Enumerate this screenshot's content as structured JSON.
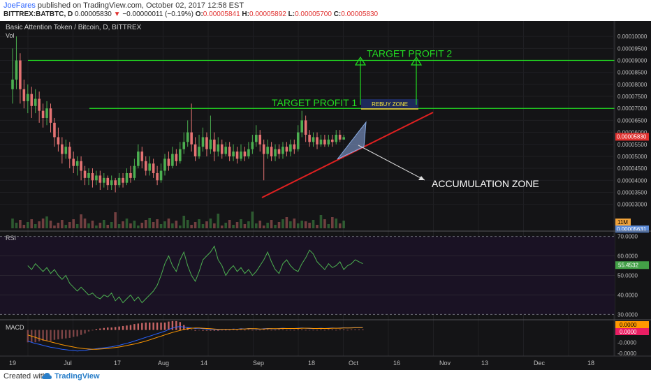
{
  "header": {
    "author": "JoeFares",
    "published": " published on TradingView.com, October 02, 2017 12:58 EST",
    "symbol": "BITTREX:BATBTC, D",
    "last": "0.00005830",
    "change": "−0.00000011 (−0.19%)",
    "o_label": "O:",
    "o": "0.00005841",
    "h_label": "H:",
    "h": "0.00005892",
    "l_label": "L:",
    "l": "0.00005700",
    "c_label": "C:",
    "c": "0.00005830"
  },
  "footer": {
    "created": "Created with",
    "brand": "TradingView"
  },
  "colors": {
    "background": "#141416",
    "up": "#4caf50",
    "down": "#e57373",
    "annotation": "#22dd22",
    "trend": "#e02020",
    "rsi_line": "#4caf50",
    "rsi_bg": "#1a1224",
    "macd_line": "#2962ff",
    "signal_line": "#ff9800"
  },
  "chart_data": {
    "type": "candlestick",
    "title": "Basic Attention Token / Bitcoin, D, BITTREX",
    "volume_label": "Vol",
    "price_axis": [
      "0.00010000",
      "0.00009500",
      "0.00009000",
      "0.00008500",
      "0.00008000",
      "0.00007500",
      "0.00007000",
      "0.00006500",
      "0.00006000",
      "0.00005500",
      "0.00005000",
      "0.00004500",
      "0.00004000",
      "0.00003500",
      "0.00003000"
    ],
    "price_range": [
      2e-05,
      0.000105
    ],
    "last_price_label": "0.00005830",
    "volume_badge": "11M",
    "volume_price_label": "0.00005631",
    "x_ticks": [
      "19",
      "Jul",
      "17",
      "Aug",
      "14",
      "Sep",
      "18",
      "Oct",
      "16",
      "Nov",
      "13",
      "Dec",
      "18"
    ],
    "candles": [
      {
        "o": 7.8e-05,
        "c": 8.2e-05,
        "h": 9.5e-05,
        "l": 7.2e-05
      },
      {
        "o": 8.2e-05,
        "c": 9e-05,
        "h": 0.0001,
        "l": 7.8e-05
      },
      {
        "o": 9e-05,
        "c": 7.8e-05,
        "h": 9.3e-05,
        "l": 7.2e-05
      },
      {
        "o": 7.8e-05,
        "c": 7.3e-05,
        "h": 8.2e-05,
        "l": 7e-05
      },
      {
        "o": 7.3e-05,
        "c": 7.6e-05,
        "h": 8e-05,
        "l": 6.8e-05
      },
      {
        "o": 7.6e-05,
        "c": 7.1e-05,
        "h": 7.9e-05,
        "l": 6.6e-05
      },
      {
        "o": 7.1e-05,
        "c": 7.4e-05,
        "h": 7.8e-05,
        "l": 6.8e-05
      },
      {
        "o": 7.4e-05,
        "c": 6.9e-05,
        "h": 7.7e-05,
        "l": 6.4e-05
      },
      {
        "o": 6.9e-05,
        "c": 6.6e-05,
        "h": 7.2e-05,
        "l": 6.2e-05
      },
      {
        "o": 6.6e-05,
        "c": 7e-05,
        "h": 7.3e-05,
        "l": 6.3e-05
      },
      {
        "o": 7e-05,
        "c": 6.4e-05,
        "h": 7.2e-05,
        "l": 6e-05
      },
      {
        "o": 6.4e-05,
        "c": 5.8e-05,
        "h": 6.6e-05,
        "l": 5.4e-05
      },
      {
        "o": 5.8e-05,
        "c": 5.5e-05,
        "h": 6.2e-05,
        "l": 5.2e-05
      },
      {
        "o": 5.5e-05,
        "c": 5.1e-05,
        "h": 5.8e-05,
        "l": 4.7e-05
      },
      {
        "o": 5.1e-05,
        "c": 5.4e-05,
        "h": 5.7e-05,
        "l": 4.9e-05
      },
      {
        "o": 5.4e-05,
        "c": 4.9e-05,
        "h": 5.6e-05,
        "l": 4.5e-05
      },
      {
        "o": 4.9e-05,
        "c": 4.6e-05,
        "h": 5.2e-05,
        "l": 4.3e-05
      },
      {
        "o": 4.6e-05,
        "c": 4.8e-05,
        "h": 5e-05,
        "l": 4.2e-05
      },
      {
        "o": 4.8e-05,
        "c": 4.4e-05,
        "h": 5e-05,
        "l": 4e-05
      },
      {
        "o": 4.4e-05,
        "c": 4.1e-05,
        "h": 4.6e-05,
        "l": 3.8e-05
      },
      {
        "o": 4.1e-05,
        "c": 4.3e-05,
        "h": 4.5e-05,
        "l": 3.8e-05
      },
      {
        "o": 4.3e-05,
        "c": 4e-05,
        "h": 4.5e-05,
        "l": 3.7e-05
      },
      {
        "o": 4e-05,
        "c": 4.2e-05,
        "h": 4.4e-05,
        "l": 3.8e-05
      },
      {
        "o": 4.2e-05,
        "c": 3.9e-05,
        "h": 4.4e-05,
        "l": 3.6e-05
      },
      {
        "o": 3.9e-05,
        "c": 4.1e-05,
        "h": 4.3e-05,
        "l": 3.7e-05
      },
      {
        "o": 4.1e-05,
        "c": 3.8e-05,
        "h": 4.2e-05,
        "l": 3.6e-05
      },
      {
        "o": 3.8e-05,
        "c": 4e-05,
        "h": 4.2e-05,
        "l": 3.6e-05
      },
      {
        "o": 4e-05,
        "c": 3.8e-05,
        "h": 4.1e-05,
        "l": 3.5e-05
      },
      {
        "o": 3.8e-05,
        "c": 4.1e-05,
        "h": 4.3e-05,
        "l": 3.7e-05
      },
      {
        "o": 4.1e-05,
        "c": 3.9e-05,
        "h": 4.3e-05,
        "l": 3.7e-05
      },
      {
        "o": 3.9e-05,
        "c": 4.3e-05,
        "h": 4.5e-05,
        "l": 3.8e-05
      },
      {
        "o": 4.3e-05,
        "c": 4.1e-05,
        "h": 4.6e-05,
        "l": 3.9e-05
      },
      {
        "o": 4.1e-05,
        "c": 4.6e-05,
        "h": 4.9e-05,
        "l": 4e-05
      },
      {
        "o": 4.6e-05,
        "c": 5.2e-05,
        "h": 5.5e-05,
        "l": 4.5e-05
      },
      {
        "o": 5.2e-05,
        "c": 4.8e-05,
        "h": 5.4e-05,
        "l": 4.5e-05
      },
      {
        "o": 4.8e-05,
        "c": 4.4e-05,
        "h": 5e-05,
        "l": 4.2e-05
      },
      {
        "o": 4.4e-05,
        "c": 4.7e-05,
        "h": 5e-05,
        "l": 4.2e-05
      },
      {
        "o": 4.7e-05,
        "c": 4.3e-05,
        "h": 4.9e-05,
        "l": 4.1e-05
      },
      {
        "o": 4.3e-05,
        "c": 4e-05,
        "h": 4.6e-05,
        "l": 3.8e-05
      },
      {
        "o": 4e-05,
        "c": 4.4e-05,
        "h": 4.7e-05,
        "l": 3.9e-05
      },
      {
        "o": 4.4e-05,
        "c": 4.9e-05,
        "h": 5.1e-05,
        "l": 4.2e-05
      },
      {
        "o": 4.9e-05,
        "c": 4.6e-05,
        "h": 5.2e-05,
        "l": 4.4e-05
      },
      {
        "o": 4.6e-05,
        "c": 5.1e-05,
        "h": 5.4e-05,
        "l": 4.5e-05
      },
      {
        "o": 5.1e-05,
        "c": 4.8e-05,
        "h": 5.3e-05,
        "l": 4.6e-05
      },
      {
        "o": 4.8e-05,
        "c": 5.3e-05,
        "h": 5.6e-05,
        "l": 4.7e-05
      },
      {
        "o": 5.3e-05,
        "c": 5.6e-05,
        "h": 6e-05,
        "l": 5.1e-05
      },
      {
        "o": 5.6e-05,
        "c": 6e-05,
        "h": 6.5e-05,
        "l": 5.4e-05
      },
      {
        "o": 6e-05,
        "c": 5.5e-05,
        "h": 7.2e-05,
        "l": 5.2e-05
      },
      {
        "o": 5.5e-05,
        "c": 5e-05,
        "h": 5.8e-05,
        "l": 4.8e-05
      },
      {
        "o": 5e-05,
        "c": 5.4e-05,
        "h": 5.9e-05,
        "l": 4.9e-05
      },
      {
        "o": 5.4e-05,
        "c": 5.8e-05,
        "h": 6.2e-05,
        "l": 5.2e-05
      },
      {
        "o": 5.8e-05,
        "c": 5.3e-05,
        "h": 6e-05,
        "l": 5e-05
      },
      {
        "o": 5.3e-05,
        "c": 5.7e-05,
        "h": 6.7e-05,
        "l": 5.1e-05
      },
      {
        "o": 5.7e-05,
        "c": 5.2e-05,
        "h": 6e-05,
        "l": 4.8e-05
      },
      {
        "o": 5.2e-05,
        "c": 5.5e-05,
        "h": 5.8e-05,
        "l": 5e-05
      },
      {
        "o": 5.5e-05,
        "c": 5.1e-05,
        "h": 5.7e-05,
        "l": 4.9e-05
      },
      {
        "o": 5.1e-05,
        "c": 5.4e-05,
        "h": 5.6e-05,
        "l": 5e-05
      },
      {
        "o": 5.4e-05,
        "c": 5e-05,
        "h": 5.6e-05,
        "l": 4.8e-05
      },
      {
        "o": 5e-05,
        "c": 5.2e-05,
        "h": 5.5e-05,
        "l": 4.8e-05
      },
      {
        "o": 5.2e-05,
        "c": 4.9e-05,
        "h": 5.4e-05,
        "l": 4.7e-05
      },
      {
        "o": 4.9e-05,
        "c": 5.2e-05,
        "h": 5.5e-05,
        "l": 4.8e-05
      },
      {
        "o": 5.2e-05,
        "c": 5e-05,
        "h": 5.4e-05,
        "l": 4.8e-05
      },
      {
        "o": 5e-05,
        "c": 5.3e-05,
        "h": 5.6e-05,
        "l": 4.9e-05
      },
      {
        "o": 5.3e-05,
        "c": 5.6e-05,
        "h": 5.9e-05,
        "l": 5.1e-05
      },
      {
        "o": 5.6e-05,
        "c": 5.9e-05,
        "h": 6.3e-05,
        "l": 5.4e-05
      },
      {
        "o": 5.9e-05,
        "c": 5.5e-05,
        "h": 6.1e-05,
        "l": 5.2e-05
      },
      {
        "o": 5.5e-05,
        "c": 5.1e-05,
        "h": 5.7e-05,
        "l": 4e-05
      },
      {
        "o": 5.1e-05,
        "c": 5.4e-05,
        "h": 5.7e-05,
        "l": 4.9e-05
      },
      {
        "o": 5.4e-05,
        "c": 5e-05,
        "h": 5.6e-05,
        "l": 4.8e-05
      },
      {
        "o": 5e-05,
        "c": 5.3e-05,
        "h": 5.5e-05,
        "l": 4.8e-05
      },
      {
        "o": 5.3e-05,
        "c": 5.1e-05,
        "h": 5.5e-05,
        "l": 4.9e-05
      },
      {
        "o": 5.1e-05,
        "c": 5.4e-05,
        "h": 5.6e-05,
        "l": 4.9e-05
      },
      {
        "o": 5.4e-05,
        "c": 5.2e-05,
        "h": 5.6e-05,
        "l": 5e-05
      },
      {
        "o": 5.2e-05,
        "c": 5.5e-05,
        "h": 5.7e-05,
        "l": 5e-05
      },
      {
        "o": 5.5e-05,
        "c": 5.3e-05,
        "h": 5.7e-05,
        "l": 5.1e-05
      },
      {
        "o": 5.3e-05,
        "c": 6e-05,
        "h": 6.3e-05,
        "l": 5.2e-05
      },
      {
        "o": 6e-05,
        "c": 6.5e-05,
        "h": 6.9e-05,
        "l": 5.8e-05
      },
      {
        "o": 6.5e-05,
        "c": 5.9e-05,
        "h": 6.7e-05,
        "l": 5.6e-05
      },
      {
        "o": 5.9e-05,
        "c": 5.6e-05,
        "h": 6.1e-05,
        "l": 5.4e-05
      },
      {
        "o": 5.6e-05,
        "c": 5.8e-05,
        "h": 6e-05,
        "l": 5.4e-05
      },
      {
        "o": 5.8e-05,
        "c": 5.5e-05,
        "h": 6e-05,
        "l": 5.3e-05
      },
      {
        "o": 5.5e-05,
        "c": 5.7e-05,
        "h": 5.9e-05,
        "l": 5.4e-05
      },
      {
        "o": 5.7e-05,
        "c": 5.5e-05,
        "h": 5.9e-05,
        "l": 5.4e-05
      },
      {
        "o": 5.5e-05,
        "c": 5.7e-05,
        "h": 5.9e-05,
        "l": 5.4e-05
      },
      {
        "o": 5.7e-05,
        "c": 5.6e-05,
        "h": 5.9e-05,
        "l": 5.4e-05
      },
      {
        "o": 5.6e-05,
        "c": 5.9e-05,
        "h": 6.1e-05,
        "l": 5.5e-05
      },
      {
        "o": 5.9e-05,
        "c": 5.7e-05,
        "h": 6.1e-05,
        "l": 5.6e-05
      },
      {
        "o": 5.7e-05,
        "c": 5.8e-05,
        "h": 5.9e-05,
        "l": 5.7e-05
      }
    ],
    "annotations": {
      "target1": "TARGET PROFIT 1",
      "target2": "TARGET PROFIT 2",
      "rebuy": "REBUY ZONE",
      "accumulation": "ACCUMULATION ZONE",
      "target1_price": 7e-05,
      "target2_price": 9e-05
    },
    "rsi": {
      "label": "RSI",
      "value_label": "55.4532",
      "axis": [
        "70.0000",
        "60.0000",
        "50.0000",
        "40.0000",
        "30.0000"
      ],
      "range": [
        28,
        72
      ],
      "values": [
        55,
        53,
        56,
        54,
        52,
        54,
        51,
        53,
        50,
        48,
        50,
        46,
        44,
        42,
        44,
        42,
        40,
        41,
        39,
        38,
        40,
        39,
        41,
        37,
        39,
        36,
        38,
        40,
        37,
        39,
        36,
        38,
        40,
        42,
        45,
        50,
        56,
        60,
        55,
        52,
        58,
        62,
        55,
        50,
        47,
        52,
        58,
        60,
        62,
        65,
        58,
        55,
        50,
        53,
        55,
        52,
        54,
        51,
        53,
        50,
        52,
        55,
        58,
        62,
        57,
        53,
        51,
        56,
        58,
        55,
        53,
        52,
        56,
        59,
        63,
        61,
        57,
        55,
        53,
        56,
        54,
        55,
        57,
        53,
        55,
        56,
        58,
        57,
        56
      ]
    },
    "macd": {
      "label": "MACD",
      "value1": "0.0000",
      "value2": "0.0000",
      "axis": [
        "0.0000",
        "-0.0000",
        "-0.0000"
      ],
      "range": [
        -1,
        0.3
      ],
      "macd_line": [
        -0.45,
        -0.5,
        -0.55,
        -0.58,
        -0.62,
        -0.66,
        -0.7,
        -0.72,
        -0.75,
        -0.78,
        -0.8,
        -0.82,
        -0.83,
        -0.85,
        -0.84,
        -0.83,
        -0.8,
        -0.78,
        -0.76,
        -0.74,
        -0.72,
        -0.7,
        -0.68,
        -0.65,
        -0.62,
        -0.58,
        -0.54,
        -0.5,
        -0.45,
        -0.4,
        -0.35,
        -0.3,
        -0.25,
        -0.2,
        -0.15,
        -0.1,
        -0.05,
        0.02,
        0.08,
        0.12,
        0.14,
        0.12,
        0.1,
        0.08,
        0.06,
        0.07,
        0.05,
        0.04,
        0.03,
        0.02,
        0.01,
        0.02,
        0.03,
        0.02,
        0.04,
        0.03,
        0.05,
        0.04,
        0.06,
        0.05,
        0.04,
        0.03,
        0.05,
        0.06,
        0.05,
        0.04,
        0.06,
        0.07,
        0.06,
        0.05,
        0.06,
        0.07,
        0.08,
        0.07,
        0.06,
        0.05,
        0.06,
        0.07,
        0.06,
        0.07,
        0.08,
        0.07,
        0.08,
        0.09,
        0.08,
        0.09,
        0.1,
        0.1,
        0.1
      ],
      "signal_line": [
        -0.2,
        -0.25,
        -0.3,
        -0.35,
        -0.4,
        -0.44,
        -0.48,
        -0.52,
        -0.56,
        -0.6,
        -0.63,
        -0.66,
        -0.69,
        -0.72,
        -0.74,
        -0.76,
        -0.77,
        -0.78,
        -0.78,
        -0.77,
        -0.76,
        -0.75,
        -0.73,
        -0.71,
        -0.69,
        -0.66,
        -0.63,
        -0.6,
        -0.57,
        -0.53,
        -0.49,
        -0.45,
        -0.4,
        -0.35,
        -0.3,
        -0.25,
        -0.2,
        -0.15,
        -0.1,
        -0.06,
        -0.02,
        0.02,
        0.05,
        0.07,
        0.08,
        0.08,
        0.07,
        0.06,
        0.05,
        0.04,
        0.03,
        0.03,
        0.03,
        0.03,
        0.03,
        0.03,
        0.04,
        0.04,
        0.05,
        0.05,
        0.05,
        0.04,
        0.04,
        0.05,
        0.05,
        0.05,
        0.05,
        0.06,
        0.06,
        0.06,
        0.06,
        0.06,
        0.07,
        0.07,
        0.07,
        0.06,
        0.06,
        0.06,
        0.06,
        0.06,
        0.07,
        0.07,
        0.07,
        0.08,
        0.08,
        0.08,
        0.09,
        0.09,
        0.09
      ]
    }
  }
}
